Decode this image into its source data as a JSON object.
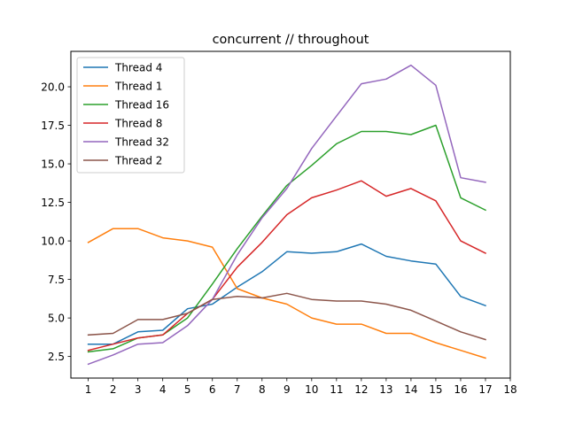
{
  "chart_data": {
    "type": "line",
    "title": "concurrent // throughout",
    "xlabel": "",
    "ylabel": "",
    "x": [
      1,
      2,
      3,
      4,
      5,
      6,
      7,
      8,
      9,
      10,
      11,
      12,
      13,
      14,
      15,
      16,
      17
    ],
    "x_ticks": [
      "1",
      "2",
      "3",
      "4",
      "5",
      "6",
      "7",
      "8",
      "9",
      "10",
      "11",
      "12",
      "13",
      "14",
      "15",
      "16",
      "17",
      "18"
    ],
    "y_ticks": [
      "2.5",
      "5.0",
      "7.5",
      "10.0",
      "12.5",
      "15.0",
      "17.5",
      "20.0"
    ],
    "xlim": [
      0.3,
      18
    ],
    "ylim": [
      1.1,
      22.3
    ],
    "grid": false,
    "legend_position": "top-left",
    "series": [
      {
        "name": "Thread 4",
        "color": "#1f77b4",
        "values": [
          3.3,
          3.3,
          4.1,
          4.2,
          5.6,
          5.9,
          7.0,
          8.0,
          9.3,
          9.2,
          9.3,
          9.8,
          9.0,
          8.7,
          8.5,
          6.4,
          5.8
        ]
      },
      {
        "name": "Thread 1",
        "color": "#ff7f0e",
        "values": [
          9.9,
          10.8,
          10.8,
          10.2,
          10.0,
          9.6,
          6.9,
          6.3,
          5.9,
          5.0,
          4.6,
          4.6,
          4.0,
          4.0,
          3.4,
          2.9,
          2.4
        ]
      },
      {
        "name": "Thread 16",
        "color": "#2ca02c",
        "values": [
          2.8,
          3.0,
          3.7,
          3.9,
          5.0,
          7.2,
          9.5,
          11.6,
          13.6,
          14.9,
          16.3,
          17.1,
          17.1,
          16.9,
          17.5,
          12.8,
          12.0
        ]
      },
      {
        "name": "Thread 8",
        "color": "#d62728",
        "values": [
          2.9,
          3.3,
          3.7,
          3.9,
          5.3,
          6.2,
          8.3,
          9.9,
          11.7,
          12.8,
          13.3,
          13.9,
          12.9,
          13.4,
          12.6,
          10.0,
          9.2
        ]
      },
      {
        "name": "Thread 32",
        "color": "#9467bd",
        "values": [
          2.0,
          2.6,
          3.3,
          3.4,
          4.5,
          6.2,
          9.1,
          11.5,
          13.4,
          16.0,
          18.1,
          20.2,
          20.5,
          21.4,
          20.1,
          14.1,
          13.8
        ]
      },
      {
        "name": "Thread 2",
        "color": "#8c564b",
        "values": [
          3.9,
          4.0,
          4.9,
          4.9,
          5.3,
          6.2,
          6.4,
          6.3,
          6.6,
          6.2,
          6.1,
          6.1,
          5.9,
          5.5,
          4.8,
          4.1,
          3.6
        ]
      }
    ]
  }
}
